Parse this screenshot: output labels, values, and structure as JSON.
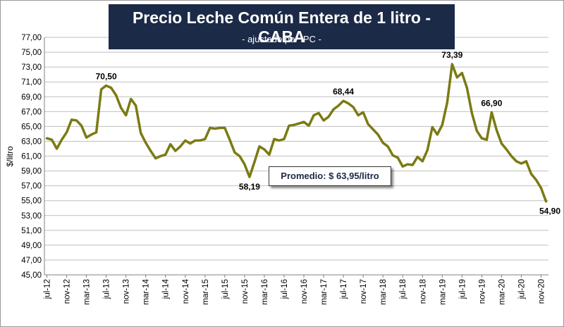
{
  "chart_data": {
    "type": "line",
    "title": "Precio Leche Común Entera de 1 litro - CABA",
    "subtitle": "- ajustado por IPC -",
    "ylabel": "$/litro",
    "xlabel": "",
    "ylim": [
      45,
      77
    ],
    "y_step": 2,
    "grid": "horizontal",
    "legend": "none",
    "y_ticks": [
      "45,00",
      "47,00",
      "49,00",
      "51,00",
      "53,00",
      "55,00",
      "57,00",
      "59,00",
      "61,00",
      "63,00",
      "65,00",
      "67,00",
      "69,00",
      "71,00",
      "73,00",
      "75,00",
      "77,00"
    ],
    "x_tick_labels": [
      "jul-12",
      "nov-12",
      "mar-13",
      "jul-13",
      "nov-13",
      "mar-14",
      "jul-14",
      "nov-14",
      "mar-15",
      "jul-15",
      "nov-15",
      "mar-16",
      "jul-16",
      "nov-16",
      "mar-17",
      "jul-17",
      "nov-17",
      "mar-18",
      "jul-18",
      "nov-18",
      "mar-19",
      "jul-19",
      "nov-19",
      "mar-20",
      "jul-20",
      "nov-20"
    ],
    "series": [
      {
        "color": "#7b7a14",
        "x": [
          "jul-12",
          "ago-12",
          "sep-12",
          "oct-12",
          "nov-12",
          "dic-12",
          "ene-13",
          "feb-13",
          "mar-13",
          "abr-13",
          "may-13",
          "jun-13",
          "jul-13",
          "ago-13",
          "sep-13",
          "oct-13",
          "nov-13",
          "dic-13",
          "ene-14",
          "feb-14",
          "mar-14",
          "abr-14",
          "may-14",
          "jun-14",
          "jul-14",
          "ago-14",
          "sep-14",
          "oct-14",
          "nov-14",
          "dic-14",
          "ene-15",
          "feb-15",
          "mar-15",
          "abr-15",
          "may-15",
          "jun-15",
          "jul-15",
          "ago-15",
          "sep-15",
          "oct-15",
          "nov-15",
          "dic-15",
          "ene-16",
          "feb-16",
          "mar-16",
          "abr-16",
          "may-16",
          "jun-16",
          "jul-16",
          "ago-16",
          "sep-16",
          "oct-16",
          "nov-16",
          "dic-16",
          "ene-17",
          "feb-17",
          "mar-17",
          "abr-17",
          "may-17",
          "jun-17",
          "jul-17",
          "ago-17",
          "sep-17",
          "oct-17",
          "nov-17",
          "dic-17",
          "ene-18",
          "feb-18",
          "mar-18",
          "abr-18",
          "may-18",
          "jun-18",
          "jul-18",
          "ago-18",
          "sep-18",
          "oct-18",
          "nov-18",
          "dic-18",
          "ene-19",
          "feb-19",
          "mar-19",
          "abr-19",
          "may-19",
          "jun-19",
          "jul-19",
          "ago-19",
          "sep-19",
          "oct-19",
          "nov-19",
          "dic-19",
          "ene-20",
          "feb-20",
          "mar-20",
          "abr-20",
          "may-20",
          "jun-20",
          "jul-20",
          "ago-20",
          "sep-20",
          "oct-20",
          "nov-20",
          "dic-20"
        ],
        "values": [
          63.4,
          63.2,
          62.0,
          63.2,
          64.2,
          65.9,
          65.8,
          65.1,
          63.5,
          63.9,
          64.2,
          70.0,
          70.5,
          70.2,
          69.2,
          67.5,
          66.5,
          68.7,
          67.8,
          64.1,
          62.8,
          61.7,
          60.7,
          61.0,
          61.2,
          62.6,
          61.7,
          62.3,
          63.1,
          62.7,
          63.1,
          63.1,
          63.3,
          64.8,
          64.7,
          64.8,
          64.8,
          63.2,
          61.5,
          61.0,
          59.9,
          58.19,
          60.2,
          62.3,
          61.9,
          61.2,
          63.3,
          63.1,
          63.3,
          65.1,
          65.2,
          65.4,
          65.6,
          65.1,
          66.5,
          66.8,
          65.8,
          66.3,
          67.3,
          67.8,
          68.44,
          68.1,
          67.6,
          66.5,
          66.9,
          65.3,
          64.6,
          63.9,
          62.8,
          62.3,
          61.1,
          60.8,
          59.6,
          59.9,
          59.8,
          60.9,
          60.3,
          61.8,
          64.9,
          63.9,
          65.2,
          68.2,
          73.39,
          71.6,
          72.2,
          70.2,
          66.8,
          64.4,
          63.4,
          63.2,
          66.9,
          64.5,
          62.7,
          61.9,
          61.0,
          60.3,
          60.0,
          60.3,
          58.6,
          57.8,
          56.7,
          54.9
        ]
      }
    ],
    "annotations": [
      {
        "index": 12,
        "text": "70,50",
        "position": "above"
      },
      {
        "index": 41,
        "text": "58,19",
        "position": "below"
      },
      {
        "index": 60,
        "text": "68,44",
        "position": "above"
      },
      {
        "index": 82,
        "text": "73,39",
        "position": "above"
      },
      {
        "index": 90,
        "text": "66,90",
        "position": "above"
      },
      {
        "index": 101,
        "text": "54,90",
        "position": "below"
      }
    ],
    "average_label": "Promedio: $ 63,95/litro"
  }
}
